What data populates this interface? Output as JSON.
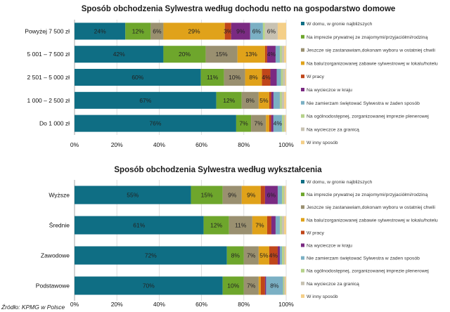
{
  "chart_data": [
    {
      "type": "bar",
      "orientation": "horizontal",
      "stacked": "percent",
      "title": "Sposób obchodzenia Sylwestra według dochodu netto na gospodarstwo domowe",
      "categories": [
        "Powyżej 7 500 zł",
        "5 001 – 7 500 zł",
        "2 501 – 5 000 zł",
        "1 000 – 2 500 zł",
        "Do 1 000 zł"
      ],
      "xticks": [
        "0%",
        "20%",
        "40%",
        "60%",
        "80%",
        "100%"
      ],
      "xlim": [
        0,
        100
      ],
      "series": [
        {
          "name": "W domu, w gronie najbliższych",
          "color": "#0f6e84",
          "values": [
            24,
            42,
            60,
            67,
            76
          ],
          "labels": [
            "24%",
            "42%",
            "60%",
            "67%",
            "76%"
          ]
        },
        {
          "name": "Na imprezie prywatnej ze znajomymi/przyjaciółmi/rodziną",
          "color": "#6ea62c",
          "values": [
            12,
            20,
            11,
            12,
            7
          ],
          "labels": [
            "12%",
            "20%",
            "11%",
            "12%",
            "7%"
          ]
        },
        {
          "name": "Jeszcze się zastanawiam,dokonam wyboru w ostatniej chwili",
          "color": "#9a9070",
          "values": [
            6,
            15,
            10,
            8,
            7
          ],
          "labels": [
            "6%",
            "15%",
            "10%",
            "8%",
            "7%"
          ]
        },
        {
          "name": "Na balu/zorganizowanej zabawie sylwestrowej w lokalu/hotelu",
          "color": "#e0a21a",
          "values": [
            29,
            13,
            8,
            5,
            1.5
          ],
          "labels": [
            "29%",
            "13%",
            "8%",
            "5%",
            ""
          ]
        },
        {
          "name": "W pracy",
          "color": "#c0461a",
          "values": [
            3,
            1,
            4,
            1,
            1
          ],
          "labels": [
            "3%",
            "",
            "4%",
            "",
            ""
          ]
        },
        {
          "name": "Na wycieczce w kraju",
          "color": "#7a2a82",
          "values": [
            9,
            4,
            3,
            1,
            1
          ],
          "labels": [
            "9%",
            "4%",
            "",
            "",
            ""
          ]
        },
        {
          "name": "Nie zamierzam świętować Sylwestra w żaden sposób",
          "color": "#7bb0c4",
          "values": [
            6,
            2,
            2,
            3,
            4
          ],
          "labels": [
            "6%",
            "",
            "",
            "",
            "4%"
          ]
        },
        {
          "name": "Na ogólnodostępnej, zorganizowanej imprezie plenerowej",
          "color": "#b6d28a",
          "values": [
            1,
            1,
            1,
            1,
            1
          ],
          "labels": [
            "",
            "",
            "",
            "",
            ""
          ]
        },
        {
          "name": "Na wycieczce za granicą",
          "color": "#c8c2b2",
          "values": [
            6,
            1,
            1,
            1,
            0.5
          ],
          "labels": [
            "6%",
            "",
            "",
            "",
            ""
          ]
        },
        {
          "name": "W inny sposób",
          "color": "#f4cf88",
          "values": [
            4,
            1,
            0.5,
            1,
            0.5
          ],
          "labels": [
            "",
            "",
            "",
            "",
            ""
          ]
        }
      ]
    },
    {
      "type": "bar",
      "orientation": "horizontal",
      "stacked": "percent",
      "title": "Sposób obchodzenia Sylwestra według wykształcenia",
      "categories": [
        "Wyższe",
        "Średnie",
        "Zawodowe",
        "Podstawowe"
      ],
      "xticks": [
        "0%",
        "20%",
        "40%",
        "60%",
        "80%",
        "100%"
      ],
      "xlim": [
        0,
        100
      ],
      "series": [
        {
          "name": "W domu, w gronie najbliższych",
          "color": "#0f6e84",
          "values": [
            55,
            61,
            72,
            70
          ],
          "labels": [
            "55%",
            "61%",
            "72%",
            "70%"
          ]
        },
        {
          "name": "Na imprezie prywatnej ze znajomymi/przyjaciółmi/rodziną",
          "color": "#6ea62c",
          "values": [
            15,
            12,
            8,
            10
          ],
          "labels": [
            "15%",
            "12%",
            "8%",
            "10%"
          ]
        },
        {
          "name": "Jeszcze się zastanawiam,dokonam wyboru w ostatniej chwili",
          "color": "#9a9070",
          "values": [
            9,
            11,
            7,
            7
          ],
          "labels": [
            "9%",
            "11%",
            "7%",
            "7%"
          ]
        },
        {
          "name": "Na balu/zorganizowanej zabawie sylwestrowej w lokalu/hotelu",
          "color": "#e0a21a",
          "values": [
            9,
            7,
            5,
            1
          ],
          "labels": [
            "9%",
            "7%",
            "5%",
            ""
          ]
        },
        {
          "name": "W pracy",
          "color": "#c0461a",
          "values": [
            2,
            2,
            4,
            2
          ],
          "labels": [
            "",
            "",
            "4%",
            ""
          ]
        },
        {
          "name": "Na wycieczce w kraju",
          "color": "#7a2a82",
          "values": [
            6,
            2,
            1,
            0.5
          ],
          "labels": [
            "6%",
            "",
            "",
            ""
          ]
        },
        {
          "name": "Nie zamierzam świętować Sylwestra w żaden sposób",
          "color": "#7bb0c4",
          "values": [
            2,
            2,
            1,
            8
          ],
          "labels": [
            "",
            "",
            "",
            "8%"
          ]
        },
        {
          "name": "Na ogólnodostępnej, zorganizowanej imprezie plenerowej",
          "color": "#b6d28a",
          "values": [
            1,
            1,
            1,
            0.5
          ],
          "labels": [
            "",
            "",
            "",
            ""
          ]
        },
        {
          "name": "Na wycieczce za granicą",
          "color": "#c8c2b2",
          "values": [
            0.5,
            1,
            0.5,
            0.5
          ],
          "labels": [
            "",
            "",
            "",
            ""
          ]
        },
        {
          "name": "W inny sposób",
          "color": "#f4cf88",
          "values": [
            0.5,
            1,
            0.5,
            0.5
          ],
          "labels": [
            "",
            "",
            "",
            ""
          ]
        }
      ]
    }
  ],
  "source": "Źródło: KPMG w Polsce"
}
